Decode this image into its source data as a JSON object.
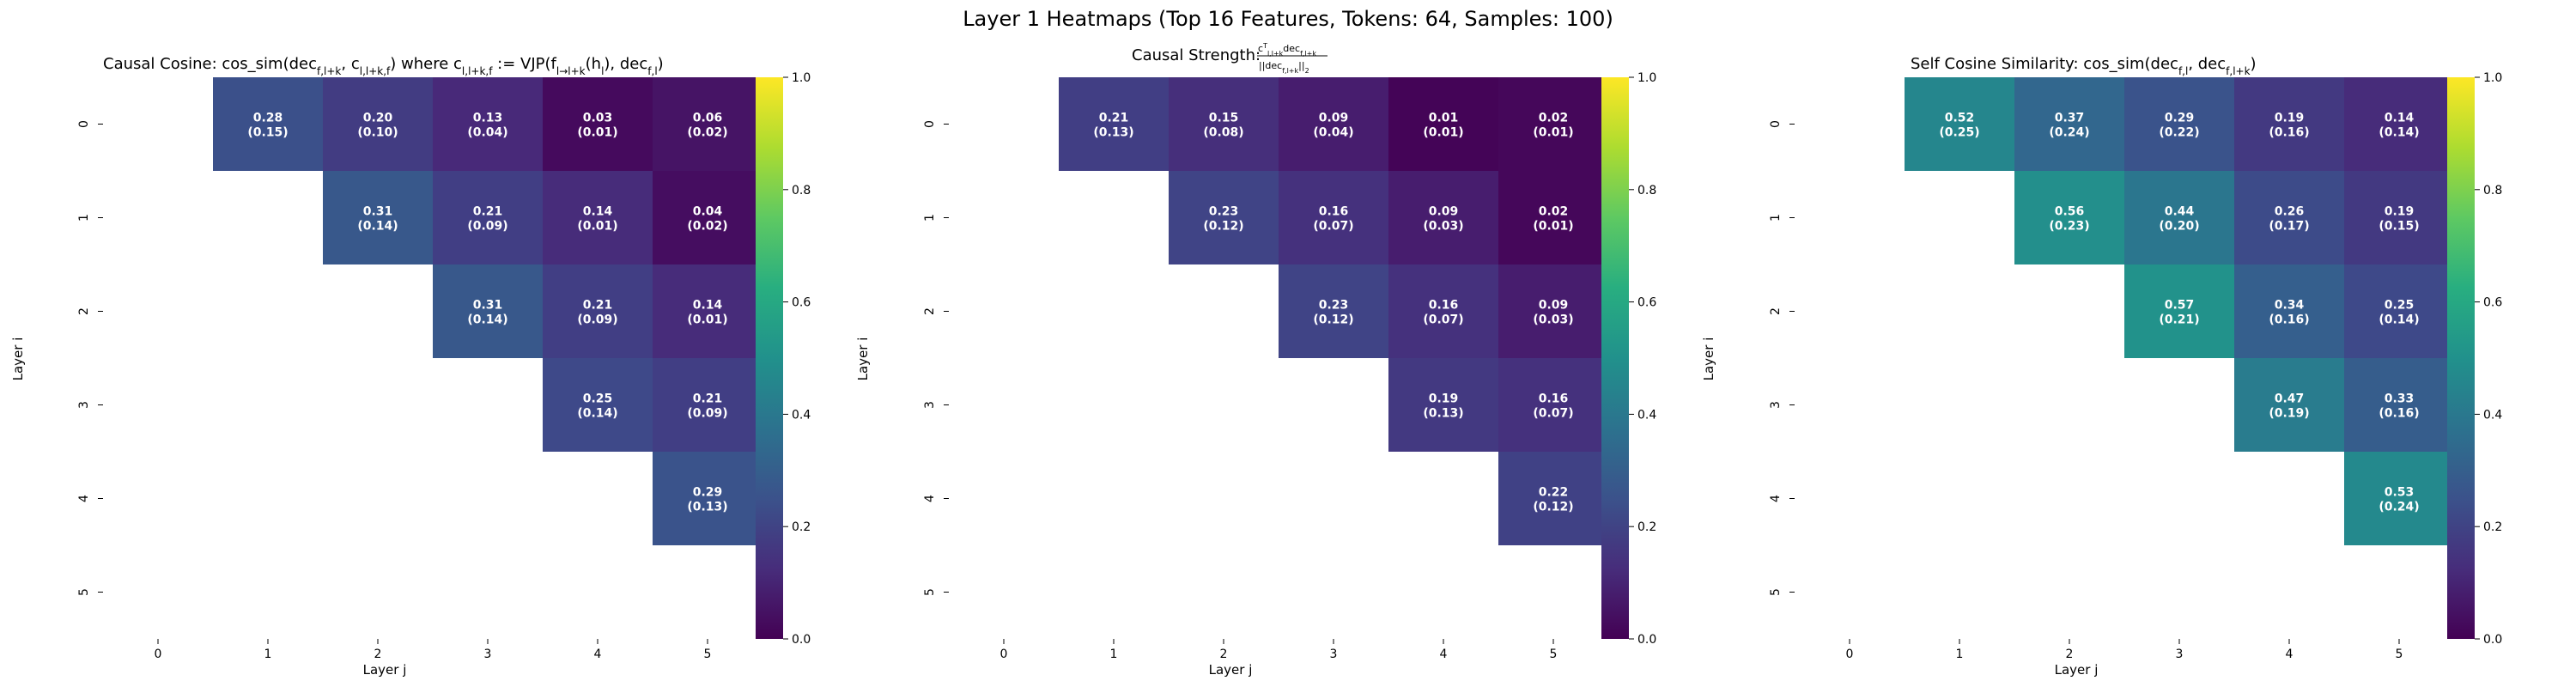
{
  "figure": {
    "suptitle": "Layer 1 Heatmaps (Top 16 Features, Tokens: 64, Samples: 100)"
  },
  "chart_data": [
    {
      "type": "heatmap",
      "title": {
        "prefix": "Causal Cosine: cos_sim(dec",
        "sub1": "f,l+k",
        "mid1": ", c",
        "sub2": "l,l+k,f",
        "mid2": ") where c",
        "sub3": "l,l+k,f",
        "mid3": " := VJP(f",
        "sub4": "l→l+k",
        "mid4": "(h",
        "sub5": "l",
        "mid5": "), dec",
        "sub6": "f,l",
        "suffix": ")"
      },
      "xlabel": "Layer j",
      "ylabel": "Layer i",
      "x_ticks": [
        "0",
        "1",
        "2",
        "3",
        "4",
        "5"
      ],
      "y_ticks": [
        "0",
        "1",
        "2",
        "3",
        "4",
        "5"
      ],
      "colorbar": {
        "min": 0.0,
        "max": 1.0,
        "ticks": [
          "0.0",
          "0.2",
          "0.4",
          "0.6",
          "0.8",
          "1.0"
        ],
        "colormap": "viridis"
      },
      "cells": [
        {
          "i": 0,
          "j": 1,
          "value": 0.28,
          "std": 0.15
        },
        {
          "i": 0,
          "j": 2,
          "value": 0.2,
          "std": 0.1
        },
        {
          "i": 0,
          "j": 3,
          "value": 0.13,
          "std": 0.04
        },
        {
          "i": 0,
          "j": 4,
          "value": 0.03,
          "std": 0.01
        },
        {
          "i": 0,
          "j": 5,
          "value": 0.06,
          "std": 0.02
        },
        {
          "i": 1,
          "j": 2,
          "value": 0.31,
          "std": 0.14
        },
        {
          "i": 1,
          "j": 3,
          "value": 0.21,
          "std": 0.09
        },
        {
          "i": 1,
          "j": 4,
          "value": 0.14,
          "std": 0.01
        },
        {
          "i": 1,
          "j": 5,
          "value": 0.04,
          "std": 0.02
        },
        {
          "i": 2,
          "j": 3,
          "value": 0.31,
          "std": 0.14
        },
        {
          "i": 2,
          "j": 4,
          "value": 0.21,
          "std": 0.09
        },
        {
          "i": 2,
          "j": 5,
          "value": 0.14,
          "std": 0.01
        },
        {
          "i": 3,
          "j": 4,
          "value": 0.25,
          "std": 0.14
        },
        {
          "i": 3,
          "j": 5,
          "value": 0.21,
          "std": 0.09
        },
        {
          "i": 4,
          "j": 5,
          "value": 0.29,
          "std": 0.13
        }
      ]
    },
    {
      "type": "heatmap",
      "title": {
        "prefix": "Causal Strength: ",
        "numerator": "c",
        "num_sup": "T",
        "num_sub": "l,l+k",
        "num_dec": "dec",
        "num_dec_sub": "f,l+k",
        "denominator": "||dec",
        "den_sub": "f,l+k",
        "den_suffix": "||",
        "den_norm": "2"
      },
      "xlabel": "Layer j",
      "ylabel": "Layer i",
      "x_ticks": [
        "0",
        "1",
        "2",
        "3",
        "4",
        "5"
      ],
      "y_ticks": [
        "0",
        "1",
        "2",
        "3",
        "4",
        "5"
      ],
      "colorbar": {
        "min": 0.0,
        "max": 1.0,
        "ticks": [
          "0.0",
          "0.2",
          "0.4",
          "0.6",
          "0.8",
          "1.0"
        ],
        "colormap": "viridis"
      },
      "cells": [
        {
          "i": 0,
          "j": 1,
          "value": 0.21,
          "std": 0.13
        },
        {
          "i": 0,
          "j": 2,
          "value": 0.15,
          "std": 0.08
        },
        {
          "i": 0,
          "j": 3,
          "value": 0.09,
          "std": 0.04
        },
        {
          "i": 0,
          "j": 4,
          "value": 0.01,
          "std": 0.01
        },
        {
          "i": 0,
          "j": 5,
          "value": 0.02,
          "std": 0.01
        },
        {
          "i": 1,
          "j": 2,
          "value": 0.23,
          "std": 0.12
        },
        {
          "i": 1,
          "j": 3,
          "value": 0.16,
          "std": 0.07
        },
        {
          "i": 1,
          "j": 4,
          "value": 0.09,
          "std": 0.03
        },
        {
          "i": 1,
          "j": 5,
          "value": 0.02,
          "std": 0.01
        },
        {
          "i": 2,
          "j": 3,
          "value": 0.23,
          "std": 0.12
        },
        {
          "i": 2,
          "j": 4,
          "value": 0.16,
          "std": 0.07
        },
        {
          "i": 2,
          "j": 5,
          "value": 0.09,
          "std": 0.03
        },
        {
          "i": 3,
          "j": 4,
          "value": 0.19,
          "std": 0.13
        },
        {
          "i": 3,
          "j": 5,
          "value": 0.16,
          "std": 0.07
        },
        {
          "i": 4,
          "j": 5,
          "value": 0.22,
          "std": 0.12
        }
      ]
    },
    {
      "type": "heatmap",
      "title": {
        "prefix": "Self Cosine Similarity: cos_sim(dec",
        "sub1": "f,l",
        "mid1": ", dec",
        "sub2": "f,l+k",
        "suffix": ")"
      },
      "xlabel": "Layer j",
      "ylabel": "Layer i",
      "x_ticks": [
        "0",
        "1",
        "2",
        "3",
        "4",
        "5"
      ],
      "y_ticks": [
        "0",
        "1",
        "2",
        "3",
        "4",
        "5"
      ],
      "colorbar": {
        "min": 0.0,
        "max": 1.0,
        "ticks": [
          "0.0",
          "0.2",
          "0.4",
          "0.6",
          "0.8",
          "1.0"
        ],
        "colormap": "viridis"
      },
      "cells": [
        {
          "i": 0,
          "j": 1,
          "value": 0.52,
          "std": 0.25
        },
        {
          "i": 0,
          "j": 2,
          "value": 0.37,
          "std": 0.24
        },
        {
          "i": 0,
          "j": 3,
          "value": 0.29,
          "std": 0.22
        },
        {
          "i": 0,
          "j": 4,
          "value": 0.19,
          "std": 0.16
        },
        {
          "i": 0,
          "j": 5,
          "value": 0.14,
          "std": 0.14
        },
        {
          "i": 1,
          "j": 2,
          "value": 0.56,
          "std": 0.23
        },
        {
          "i": 1,
          "j": 3,
          "value": 0.44,
          "std": 0.2
        },
        {
          "i": 1,
          "j": 4,
          "value": 0.26,
          "std": 0.17
        },
        {
          "i": 1,
          "j": 5,
          "value": 0.19,
          "std": 0.15
        },
        {
          "i": 2,
          "j": 3,
          "value": 0.57,
          "std": 0.21
        },
        {
          "i": 2,
          "j": 4,
          "value": 0.34,
          "std": 0.16
        },
        {
          "i": 2,
          "j": 5,
          "value": 0.25,
          "std": 0.14
        },
        {
          "i": 3,
          "j": 4,
          "value": 0.47,
          "std": 0.19
        },
        {
          "i": 3,
          "j": 5,
          "value": 0.33,
          "std": 0.16
        },
        {
          "i": 4,
          "j": 5,
          "value": 0.53,
          "std": 0.24
        }
      ]
    }
  ]
}
